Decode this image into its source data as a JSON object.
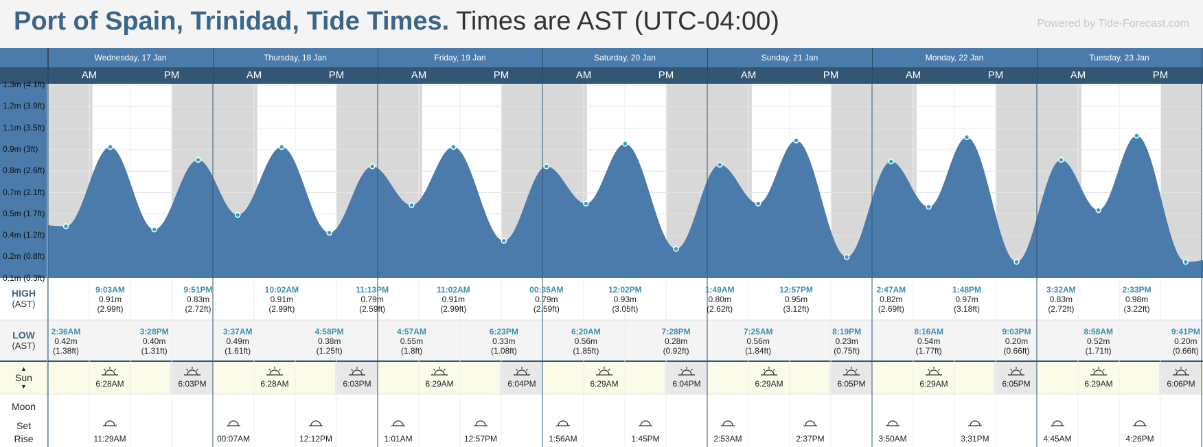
{
  "title_bold": "Port of Spain, Trinidad, Tide Times.",
  "title_rest": "Times are AST (UTC-04:00)",
  "powered_by": "Powered by Tide-Forecast.com",
  "days": [
    "Wednesday, 17 Jan",
    "Thursday, 18 Jan",
    "Friday, 19 Jan",
    "Saturday, 20 Jan",
    "Sunday, 21 Jan",
    "Monday, 22 Jan",
    "Tuesday, 23 Jan"
  ],
  "am_label": "AM",
  "pm_label": "PM",
  "y_axis": [
    "1.3m (4.1ft)",
    "1.2m (3.9ft)",
    "1.1m (3.5ft)",
    "0.9m (3ft)",
    "0.8m (2.6ft)",
    "0.7m (2.1ft)",
    "0.5m (1.7ft)",
    "0.4m (1.2ft)",
    "0.2m (0.8ft)",
    "0.1m (0.3ft)"
  ],
  "high_label": "HIGH",
  "low_label": "LOW",
  "tz_label": "(AST)",
  "sun_label": "Sun",
  "moon_label": "Moon",
  "set_label": "Set",
  "rise_label": "Rise",
  "chart_data": {
    "type": "area",
    "title": "Port of Spain, Trinidad, Tide Times.",
    "ylabel": "",
    "ylim": [
      0.1,
      1.3
    ],
    "unit": "m",
    "points": [
      {
        "day": 0,
        "time": "2:36AM",
        "h": 0.42,
        "ft": "1.38ft",
        "kind": "low"
      },
      {
        "day": 0,
        "time": "9:03AM",
        "h": 0.91,
        "ft": "2.99ft",
        "kind": "high"
      },
      {
        "day": 0,
        "time": "3:28PM",
        "h": 0.4,
        "ft": "1.31ft",
        "kind": "low"
      },
      {
        "day": 0,
        "time": "9:51PM",
        "h": 0.83,
        "ft": "2.72ft",
        "kind": "high"
      },
      {
        "day": 1,
        "time": "3:37AM",
        "h": 0.49,
        "ft": "1.61ft",
        "kind": "low"
      },
      {
        "day": 1,
        "time": "10:02AM",
        "h": 0.91,
        "ft": "2.99ft",
        "kind": "high"
      },
      {
        "day": 1,
        "time": "4:58PM",
        "h": 0.38,
        "ft": "1.25ft",
        "kind": "low"
      },
      {
        "day": 1,
        "time": "11:13PM",
        "h": 0.79,
        "ft": "2.59ft",
        "kind": "high"
      },
      {
        "day": 2,
        "time": "4:57AM",
        "h": 0.55,
        "ft": "1.8ft",
        "kind": "low"
      },
      {
        "day": 2,
        "time": "11:02AM",
        "h": 0.91,
        "ft": "2.99ft",
        "kind": "high"
      },
      {
        "day": 2,
        "time": "6:23PM",
        "h": 0.33,
        "ft": "1.08ft",
        "kind": "low"
      },
      {
        "day": 3,
        "time": "00:35AM",
        "h": 0.79,
        "ft": "2.59ft",
        "kind": "high"
      },
      {
        "day": 3,
        "time": "6:20AM",
        "h": 0.56,
        "ft": "1.85ft",
        "kind": "low"
      },
      {
        "day": 3,
        "time": "12:02PM",
        "h": 0.93,
        "ft": "3.05ft",
        "kind": "high"
      },
      {
        "day": 3,
        "time": "7:28PM",
        "h": 0.28,
        "ft": "0.92ft",
        "kind": "low"
      },
      {
        "day": 4,
        "time": "1:49AM",
        "h": 0.8,
        "ft": "2.62ft",
        "kind": "high"
      },
      {
        "day": 4,
        "time": "7:25AM",
        "h": 0.56,
        "ft": "1.84ft",
        "kind": "low"
      },
      {
        "day": 4,
        "time": "12:57PM",
        "h": 0.95,
        "ft": "3.12ft",
        "kind": "high"
      },
      {
        "day": 4,
        "time": "8:19PM",
        "h": 0.23,
        "ft": "0.75ft",
        "kind": "low"
      },
      {
        "day": 5,
        "time": "2:47AM",
        "h": 0.82,
        "ft": "2.69ft",
        "kind": "high"
      },
      {
        "day": 5,
        "time": "8:16AM",
        "h": 0.54,
        "ft": "1.77ft",
        "kind": "low"
      },
      {
        "day": 5,
        "time": "1:48PM",
        "h": 0.97,
        "ft": "3.18ft",
        "kind": "high"
      },
      {
        "day": 5,
        "time": "9:03PM",
        "h": 0.2,
        "ft": "0.66ft",
        "kind": "low"
      },
      {
        "day": 6,
        "time": "3:32AM",
        "h": 0.83,
        "ft": "2.72ft",
        "kind": "high"
      },
      {
        "day": 6,
        "time": "8:58AM",
        "h": 0.52,
        "ft": "1.71ft",
        "kind": "low"
      },
      {
        "day": 6,
        "time": "2:33PM",
        "h": 0.98,
        "ft": "3.22ft",
        "kind": "high"
      },
      {
        "day": 6,
        "time": "9:41PM",
        "h": 0.2,
        "ft": "0.66ft",
        "kind": "low"
      }
    ]
  },
  "sun": [
    {
      "rise": "6:28AM",
      "set": "6:03PM"
    },
    {
      "rise": "6:28AM",
      "set": "6:03PM"
    },
    {
      "rise": "6:29AM",
      "set": "6:04PM"
    },
    {
      "rise": "6:29AM",
      "set": "6:04PM"
    },
    {
      "rise": "6:29AM",
      "set": "6:05PM"
    },
    {
      "rise": "6:29AM",
      "set": "6:05PM"
    },
    {
      "rise": "6:29AM",
      "set": "6:06PM"
    }
  ],
  "moon": [
    {
      "day": 0,
      "time": "11:29AM"
    },
    {
      "day": 1,
      "time": "00:07AM"
    },
    {
      "day": 1,
      "time": "12:12PM"
    },
    {
      "day": 2,
      "time": "1:01AM"
    },
    {
      "day": 2,
      "time": "12:57PM"
    },
    {
      "day": 3,
      "time": "1:56AM"
    },
    {
      "day": 3,
      "time": "1:45PM"
    },
    {
      "day": 4,
      "time": "2:53AM"
    },
    {
      "day": 4,
      "time": "2:37PM"
    },
    {
      "day": 5,
      "time": "3:50AM"
    },
    {
      "day": 5,
      "time": "3:31PM"
    },
    {
      "day": 6,
      "time": "4:45AM"
    },
    {
      "day": 6,
      "time": "4:26PM"
    }
  ],
  "colors": {
    "tide": "#4a7bab",
    "night": "#d8d8d8",
    "marker": "#2aa7b8",
    "header": "#4a7bab",
    "subheader": "#325674",
    "accent": "#3b6589",
    "sunrow": "#fbfbe9"
  }
}
